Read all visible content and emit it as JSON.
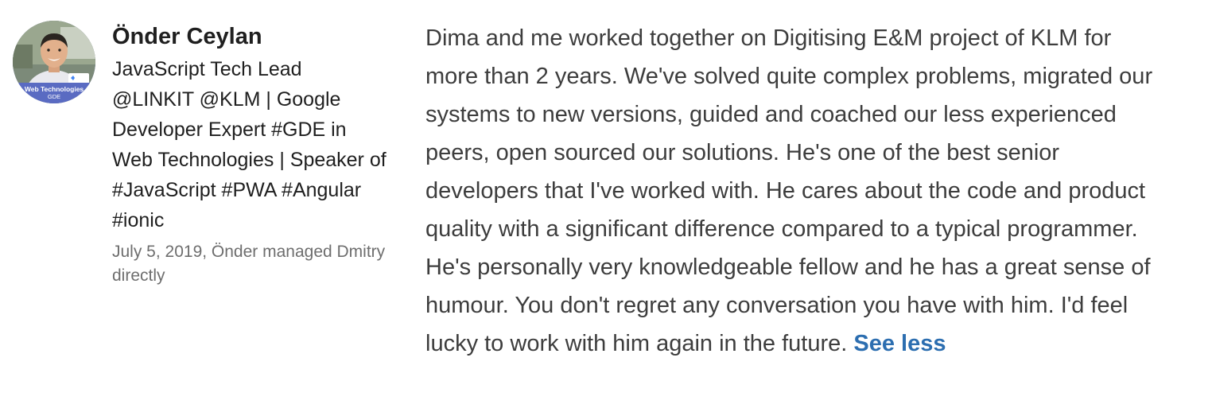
{
  "author": {
    "name": "Önder Ceylan",
    "headline": "JavaScript Tech Lead @LINKIT @KLM | Google Developer Expert #GDE in Web Technologies | Speaker of #JavaScript #PWA #Angular #ionic",
    "meta": "July 5, 2019, Önder managed Dmitry directly",
    "avatar": {
      "badge_line1": "Web Technologies",
      "badge_line2": "GDE",
      "badge_bg": "#5a6bc2"
    }
  },
  "recommendation": {
    "text": "Dima and me worked together on Digitising E&M project of KLM for more than 2 years. We've solved quite complex problems, migrated our systems to new versions, guided and coached our less experienced peers, open sourced our solutions. He's one of the best senior developers that I've worked with. He cares about the code and product quality with a significant difference compared to a typical programmer. He's personally very knowledgeable fellow and he has a great sense of humour. You don't regret any conversation you have with him. I'd feel lucky to work with him again in the future.",
    "toggle_label": "See less"
  },
  "colors": {
    "link": "#2c6eb0",
    "body_text": "#3d3d3d",
    "meta_text": "#6e6e6e"
  }
}
